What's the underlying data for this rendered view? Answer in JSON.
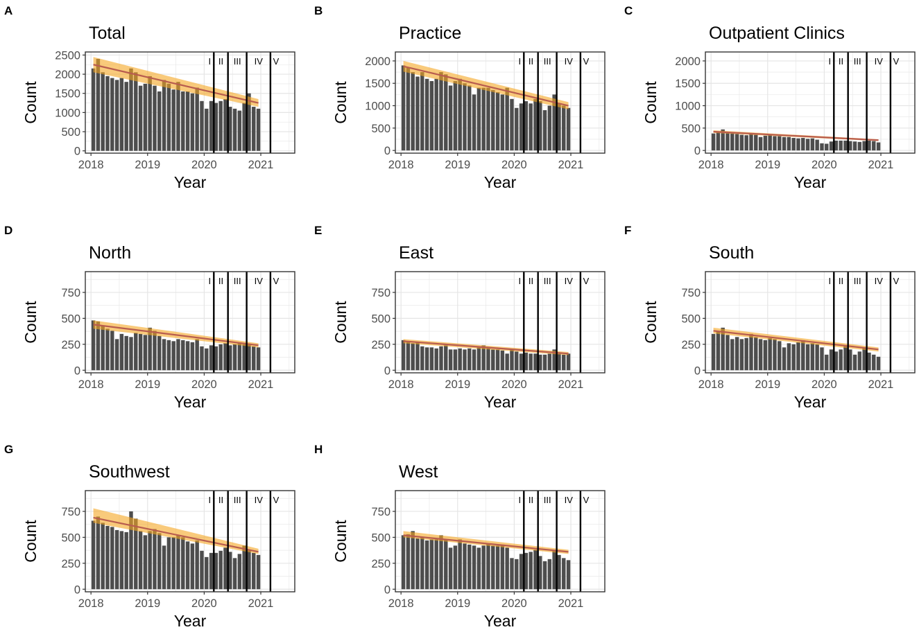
{
  "colors": {
    "bar": "#4d4d4d",
    "trend_line": "#b85c4f",
    "ci_band": "#f5a623",
    "panel_border": "#333333",
    "grid": "#e5e5e5",
    "background": "#ffffff",
    "text": "#000000",
    "axis_text": "#4d4d4d"
  },
  "phase_labels": [
    "I",
    "II",
    "III",
    "IV",
    "V"
  ],
  "phase_boundaries": [
    2020.17,
    2020.42,
    2020.75,
    2021.17
  ],
  "chart_data": [
    {
      "panel": "A",
      "title": "Total",
      "type": "bar",
      "xlabel": "Year",
      "ylabel": "Count",
      "x_start": 2018.042,
      "x_step": 0.0833,
      "xlim": [
        2017.9,
        2021.6
      ],
      "xticks": [
        2018,
        2019,
        2020,
        2021
      ],
      "ylim": [
        -60,
        2580
      ],
      "yticks": [
        0,
        500,
        1000,
        1500,
        2000,
        2500
      ],
      "values": [
        2150,
        2400,
        2050,
        1950,
        1900,
        1850,
        1900,
        1800,
        2150,
        2050,
        1700,
        1750,
        1950,
        1700,
        1550,
        1850,
        1750,
        1600,
        1800,
        1550,
        1550,
        1500,
        1650,
        1300,
        1100,
        1300,
        1250,
        1300,
        1350,
        1150,
        1100,
        1050,
        1250,
        1500,
        1150,
        1100
      ],
      "trend": [
        2250,
        1250
      ],
      "ci_lower": [
        2050,
        1150
      ],
      "ci_upper": [
        2450,
        1350
      ]
    },
    {
      "panel": "B",
      "title": "Practice",
      "type": "bar",
      "xlabel": "Year",
      "ylabel": "Count",
      "x_start": 2018.042,
      "x_step": 0.0833,
      "xlim": [
        2017.9,
        2021.6
      ],
      "xticks": [
        2018,
        2019,
        2020,
        2021
      ],
      "ylim": [
        -60,
        2200
      ],
      "yticks": [
        0,
        500,
        1000,
        1500,
        2000
      ],
      "values": [
        1900,
        1850,
        1750,
        1650,
        1750,
        1600,
        1550,
        1600,
        1750,
        1700,
        1450,
        1550,
        1600,
        1500,
        1450,
        1250,
        1400,
        1400,
        1400,
        1350,
        1300,
        1250,
        1400,
        1150,
        950,
        1050,
        1100,
        1050,
        1150,
        1100,
        900,
        1000,
        1250,
        1050,
        1000,
        950
      ],
      "trend": [
        1880,
        1000
      ],
      "ci_lower": [
        1760,
        920
      ],
      "ci_upper": [
        2000,
        1080
      ]
    },
    {
      "panel": "C",
      "title": "Outpatient Clinics",
      "type": "bar",
      "xlabel": "Year",
      "ylabel": "Count",
      "x_start": 2018.042,
      "x_step": 0.0833,
      "xlim": [
        2017.9,
        2021.6
      ],
      "xticks": [
        2018,
        2019,
        2020,
        2021
      ],
      "ylim": [
        -60,
        2200
      ],
      "yticks": [
        0,
        500,
        1000,
        1500,
        2000
      ],
      "values": [
        380,
        420,
        470,
        400,
        380,
        370,
        350,
        340,
        380,
        350,
        300,
        330,
        360,
        320,
        320,
        300,
        300,
        280,
        270,
        280,
        260,
        270,
        240,
        160,
        150,
        200,
        220,
        220,
        220,
        210,
        200,
        190,
        210,
        220,
        210,
        180
      ],
      "trend": [
        420,
        230
      ],
      "ci_lower": [
        390,
        210
      ],
      "ci_upper": [
        450,
        250
      ]
    },
    {
      "panel": "D",
      "title": "North",
      "type": "bar",
      "xlabel": "Year",
      "ylabel": "Count",
      "x_start": 2018.042,
      "x_step": 0.0833,
      "xlim": [
        2017.9,
        2021.6
      ],
      "xticks": [
        2018,
        2019,
        2020,
        2021
      ],
      "ylim": [
        -25,
        950
      ],
      "yticks": [
        0,
        250,
        500,
        750
      ],
      "values": [
        480,
        470,
        430,
        400,
        380,
        300,
        350,
        330,
        320,
        360,
        350,
        340,
        410,
        380,
        330,
        300,
        290,
        280,
        300,
        290,
        280,
        270,
        300,
        230,
        210,
        240,
        230,
        250,
        260,
        240,
        250,
        260,
        250,
        250,
        230,
        220
      ],
      "trend": [
        440,
        240
      ],
      "ci_lower": [
        400,
        220
      ],
      "ci_upper": [
        480,
        260
      ]
    },
    {
      "panel": "E",
      "title": "East",
      "type": "bar",
      "xlabel": "Year",
      "ylabel": "Count",
      "x_start": 2018.042,
      "x_step": 0.0833,
      "xlim": [
        2017.9,
        2021.6
      ],
      "xticks": [
        2018,
        2019,
        2020,
        2021
      ],
      "ylim": [
        -25,
        950
      ],
      "yticks": [
        0,
        250,
        500,
        750
      ],
      "values": [
        290,
        280,
        260,
        270,
        230,
        220,
        220,
        210,
        230,
        240,
        200,
        200,
        210,
        200,
        210,
        200,
        220,
        240,
        220,
        200,
        200,
        190,
        160,
        200,
        180,
        160,
        170,
        160,
        160,
        150,
        150,
        160,
        200,
        160,
        150,
        160
      ],
      "trend": [
        280,
        160
      ],
      "ci_lower": [
        260,
        145
      ],
      "ci_upper": [
        300,
        175
      ]
    },
    {
      "panel": "F",
      "title": "South",
      "type": "bar",
      "xlabel": "Year",
      "ylabel": "Count",
      "x_start": 2018.042,
      "x_step": 0.0833,
      "xlim": [
        2017.9,
        2021.6
      ],
      "xticks": [
        2018,
        2019,
        2020,
        2021
      ],
      "ylim": [
        -25,
        950
      ],
      "yticks": [
        0,
        250,
        500,
        750
      ],
      "values": [
        350,
        370,
        410,
        340,
        300,
        320,
        300,
        310,
        350,
        320,
        300,
        290,
        310,
        300,
        280,
        220,
        260,
        250,
        270,
        290,
        250,
        260,
        250,
        220,
        150,
        200,
        180,
        200,
        230,
        200,
        150,
        180,
        220,
        170,
        150,
        130
      ],
      "trend": [
        380,
        200
      ],
      "ci_lower": [
        355,
        180
      ],
      "ci_upper": [
        410,
        220
      ]
    },
    {
      "panel": "G",
      "title": "Southwest",
      "type": "bar",
      "xlabel": "Year",
      "ylabel": "Count",
      "x_start": 2018.042,
      "x_step": 0.0833,
      "xlim": [
        2017.9,
        2021.6
      ],
      "xticks": [
        2018,
        2019,
        2020,
        2021
      ],
      "ylim": [
        -25,
        950
      ],
      "yticks": [
        0,
        250,
        500,
        750
      ],
      "values": [
        660,
        700,
        640,
        610,
        600,
        570,
        560,
        550,
        750,
        680,
        560,
        520,
        560,
        580,
        540,
        420,
        500,
        500,
        520,
        500,
        460,
        440,
        470,
        370,
        310,
        350,
        350,
        370,
        400,
        360,
        300,
        340,
        420,
        380,
        350,
        330
      ],
      "trend": [
        690,
        360
      ],
      "ci_lower": [
        640,
        340
      ],
      "ci_upper": [
        780,
        390
      ]
    },
    {
      "panel": "H",
      "title": "West",
      "type": "bar",
      "xlabel": "Year",
      "ylabel": "Count",
      "x_start": 2018.042,
      "x_step": 0.0833,
      "xlim": [
        2017.9,
        2021.6
      ],
      "xticks": [
        2018,
        2019,
        2020,
        2021
      ],
      "ylim": [
        -25,
        950
      ],
      "yticks": [
        0,
        250,
        500,
        750
      ],
      "values": [
        520,
        530,
        560,
        490,
        500,
        470,
        480,
        480,
        520,
        480,
        400,
        420,
        480,
        440,
        430,
        420,
        400,
        420,
        440,
        420,
        420,
        430,
        400,
        300,
        290,
        340,
        350,
        360,
        380,
        320,
        270,
        290,
        380,
        330,
        300,
        280
      ],
      "trend": [
        520,
        360
      ],
      "ci_lower": [
        500,
        340
      ],
      "ci_upper": [
        560,
        380
      ]
    }
  ]
}
